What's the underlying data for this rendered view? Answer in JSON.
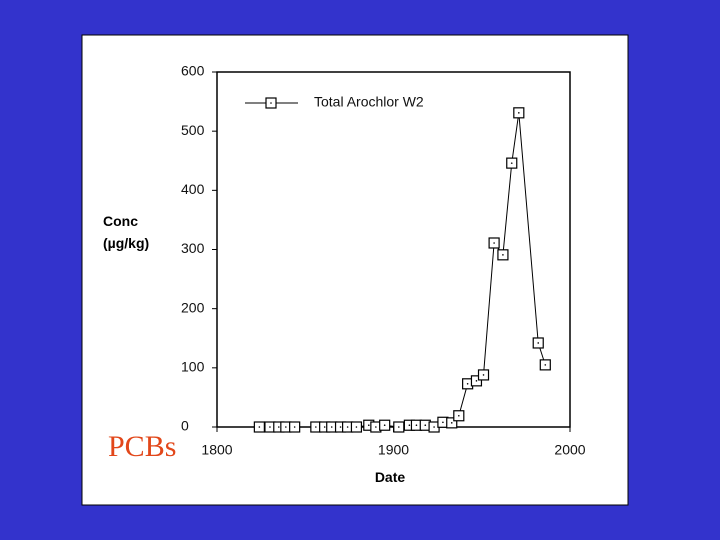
{
  "chart_data": {
    "type": "line",
    "x_label": "Date",
    "y_label": [
      "Conc",
      "(µg/kg)"
    ],
    "annotation": "PCBs",
    "xlim": [
      1800,
      2000
    ],
    "xticks": [
      1800,
      1900,
      2000
    ],
    "ylim": [
      0,
      600
    ],
    "yticks": [
      0,
      100,
      200,
      300,
      400,
      500,
      600
    ],
    "legend": "top-left",
    "series": [
      {
        "name": "Total Arochlor W2",
        "color": "#000000",
        "x": [
          1824,
          1830,
          1835,
          1839,
          1844,
          1856,
          1861,
          1865,
          1870,
          1874,
          1879,
          1886,
          1890,
          1895,
          1903,
          1909,
          1913,
          1918,
          1923,
          1928,
          1933,
          1937,
          1942,
          1947,
          1951,
          1957,
          1962,
          1967,
          1971,
          1982,
          1986
        ],
        "values": [
          0,
          0,
          0,
          0,
          0,
          0,
          0,
          0,
          0,
          0,
          0,
          3,
          0,
          3,
          0,
          3,
          3,
          3,
          0,
          8,
          7,
          19,
          73,
          78,
          88,
          311,
          291,
          446,
          531,
          142,
          105
        ]
      }
    ]
  }
}
